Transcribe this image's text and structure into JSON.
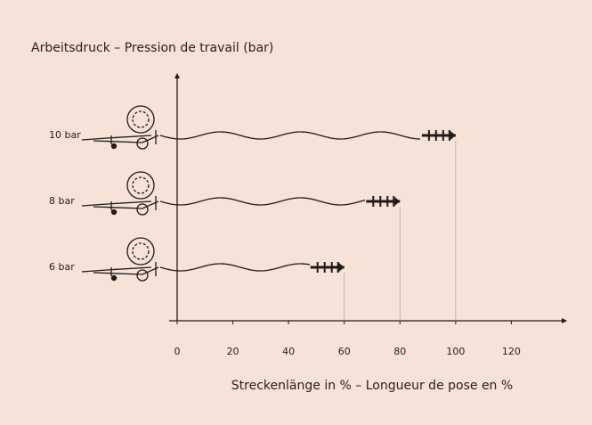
{
  "chart_data": {
    "type": "bar",
    "title": "Arbeitsdruck – Pression de travail (bar)",
    "x_label": "Streckenlänge in % – Longueur de pose en %",
    "categories": [
      "10 bar",
      "8 bar",
      "6 bar"
    ],
    "values": [
      100,
      80,
      60
    ],
    "color": "#1e1a1a",
    "xlim": [
      0,
      140
    ],
    "xticks": [
      0,
      20,
      40,
      60,
      80,
      100,
      120
    ]
  }
}
